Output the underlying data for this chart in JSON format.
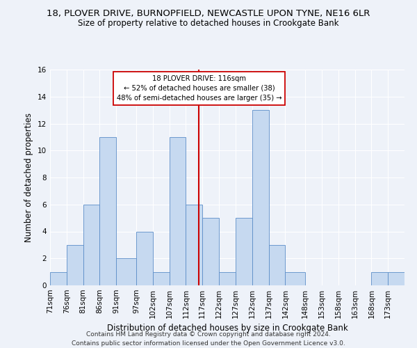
{
  "title": "18, PLOVER DRIVE, BURNOPFIELD, NEWCASTLE UPON TYNE, NE16 6LR",
  "subtitle": "Size of property relative to detached houses in Crookgate Bank",
  "xlabel": "Distribution of detached houses by size in Crookgate Bank",
  "ylabel": "Number of detached properties",
  "bar_labels": [
    "71sqm",
    "76sqm",
    "81sqm",
    "86sqm",
    "91sqm",
    "97sqm",
    "102sqm",
    "107sqm",
    "112sqm",
    "117sqm",
    "122sqm",
    "127sqm",
    "132sqm",
    "137sqm",
    "142sqm",
    "148sqm",
    "153sqm",
    "158sqm",
    "163sqm",
    "168sqm",
    "173sqm"
  ],
  "bar_values": [
    1,
    3,
    6,
    11,
    2,
    4,
    1,
    11,
    6,
    5,
    1,
    5,
    13,
    3,
    1,
    0,
    0,
    0,
    0,
    1,
    1
  ],
  "bar_color": "#c6d9f0",
  "bar_edge_color": "#5b8dc8",
  "annotation_text_line1": "18 PLOVER DRIVE: 116sqm",
  "annotation_text_line2": "← 52% of detached houses are smaller (38)",
  "annotation_text_line3": "48% of semi-detached houses are larger (35) →",
  "annotation_box_color": "#ffffff",
  "annotation_box_edge": "#cc0000",
  "vline_color": "#cc0000",
  "ylim": [
    0,
    16
  ],
  "yticks": [
    0,
    2,
    4,
    6,
    8,
    10,
    12,
    14,
    16
  ],
  "bin_starts": [
    71,
    76,
    81,
    86,
    91,
    97,
    102,
    107,
    112,
    117,
    122,
    127,
    132,
    137,
    142,
    148,
    153,
    158,
    163,
    168,
    173
  ],
  "bin_widths": [
    5,
    5,
    5,
    5,
    6,
    5,
    5,
    5,
    5,
    5,
    5,
    5,
    5,
    5,
    6,
    5,
    5,
    5,
    5,
    5,
    5
  ],
  "footer_line1": "Contains HM Land Registry data © Crown copyright and database right 2024.",
  "footer_line2": "Contains public sector information licensed under the Open Government Licence v3.0.",
  "background_color": "#eef2f9",
  "plot_bg_color": "#eef2f9",
  "title_fontsize": 9.5,
  "subtitle_fontsize": 8.5,
  "axis_label_fontsize": 8.5,
  "tick_fontsize": 7.5,
  "footer_fontsize": 6.5,
  "vline_x": 116
}
